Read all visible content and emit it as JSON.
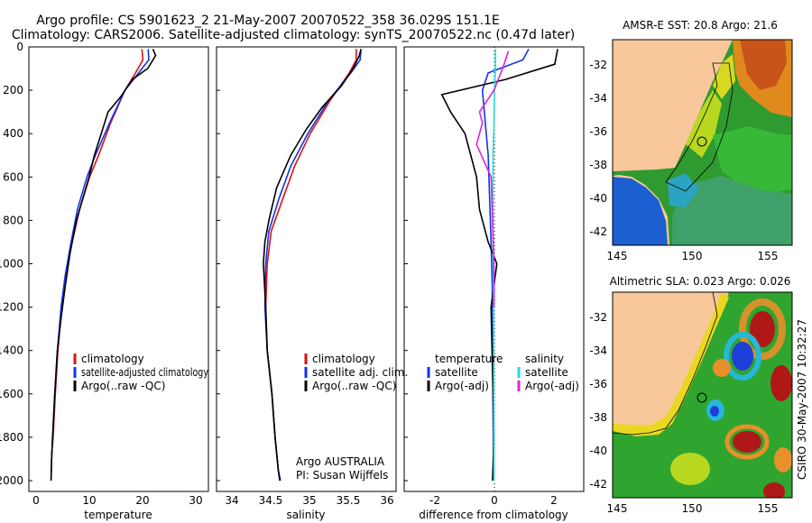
{
  "header": {
    "line1": "Argo profile: CS 5901623_2 21-May-2007 20070522_358 36.029S 151.1E",
    "line2": "Climatology: CARS2006. Satellite-adjusted climatology: synTS_20070522.nc (0.47d later)"
  },
  "side_label": "CSIRO 30-May-2007 10:32:27",
  "panels": {
    "temperature": {
      "xlabel": "temperature",
      "xticks": [
        "0",
        "10",
        "20",
        "30"
      ],
      "legend": [
        "climatology",
        "satellite-adjusted climatology",
        "Argo(..raw -QC)"
      ]
    },
    "salinity": {
      "xlabel": "salinity",
      "xticks": [
        "34",
        "34.5",
        "35",
        "35.5",
        "36"
      ],
      "legend": [
        "climatology",
        "satellite adj. clim.",
        "Argo(..raw -QC)"
      ],
      "note_line1": "Argo AUSTRALIA",
      "note_line2": "PI: Susan Wijffels"
    },
    "difference": {
      "xlabel": "difference from climatology",
      "xticks": [
        "-2",
        "0",
        "2"
      ],
      "legend_left": [
        "temperature",
        "satellite",
        "Argo(-adj)"
      ],
      "legend_right": [
        "salinity",
        "satellite",
        "Argo(-adj)"
      ]
    },
    "yticks": [
      "0",
      "200",
      "400",
      "600",
      "800",
      "1000",
      "1200",
      "1400",
      "1600",
      "1800",
      "2000"
    ]
  },
  "maps": {
    "sst_title": "AMSR-E SST: 20.8 Argo: 21.6",
    "sla_title": "Altimetric SLA: 0.023 Argo: 0.026",
    "lat_ticks": [
      "-32",
      "-34",
      "-36",
      "-38",
      "-40",
      "-42"
    ],
    "lon_ticks": [
      "145",
      "150",
      "155"
    ]
  },
  "colors": {
    "climatology": "#dd1111",
    "satellite": "#1133ee",
    "argo": "#000000",
    "salinity_satellite": "#22dddd",
    "salinity_argo": "#dd22dd",
    "land": "#f8c89a"
  },
  "chart_data": [
    {
      "type": "line",
      "title": "",
      "xlabel": "temperature",
      "ylabel": "",
      "xlim": [
        -2,
        32
      ],
      "ylim": [
        2050,
        0
      ],
      "series": [
        {
          "name": "climatology",
          "x": [
            19.4,
            19.6,
            18.2,
            16.2,
            13.5,
            11.2,
            9.5,
            7.6,
            6.2,
            5.0,
            4.2,
            3.5,
            3.0,
            2.6,
            2.3
          ],
          "y": [
            10,
            60,
            120,
            200,
            350,
            500,
            600,
            750,
            900,
            1050,
            1200,
            1400,
            1600,
            1800,
            1880
          ]
        },
        {
          "name": "satellite-adjusted climatology",
          "x": [
            20.6,
            20.7,
            18.8,
            16.2,
            13.3,
            10.6,
            9.0,
            7.2,
            6.0,
            4.9,
            4.1,
            3.4,
            2.9,
            2.5,
            2.3,
            2.2
          ],
          "y": [
            10,
            60,
            120,
            200,
            350,
            500,
            600,
            750,
            900,
            1050,
            1200,
            1400,
            1600,
            1800,
            1900,
            2000
          ]
        },
        {
          "name": "Argo(..raw -QC)",
          "x": [
            21.5,
            22.0,
            20.5,
            17.6,
            15.4,
            13.0,
            11.7,
            10.4,
            9.4,
            8.2,
            7.0,
            5.8,
            4.9,
            4.1,
            3.4,
            2.9,
            2.5,
            2.3,
            2.2
          ],
          "y": [
            10,
            40,
            100,
            150,
            230,
            300,
            400,
            500,
            600,
            700,
            800,
            950,
            1100,
            1250,
            1400,
            1600,
            1800,
            1900,
            2000
          ]
        }
      ]
    },
    {
      "type": "line",
      "title": "",
      "xlabel": "salinity",
      "ylabel": "",
      "xlim": [
        33.85,
        36.15
      ],
      "ylim": [
        2050,
        0
      ],
      "series": [
        {
          "name": "climatology",
          "x": [
            35.64,
            35.64,
            35.55,
            35.3,
            35.05,
            34.85,
            34.7,
            34.55,
            34.5,
            34.48,
            34.5,
            34.56,
            34.6,
            34.64,
            34.66
          ],
          "y": [
            10,
            60,
            120,
            250,
            400,
            550,
            700,
            850,
            1000,
            1200,
            1400,
            1600,
            1800,
            1950,
            2000
          ]
        },
        {
          "name": "satellite adj. clim.",
          "x": [
            35.7,
            35.69,
            35.57,
            35.28,
            35.02,
            34.8,
            34.65,
            34.52,
            34.48,
            34.47,
            34.5,
            34.56,
            34.6,
            34.64,
            34.67
          ],
          "y": [
            10,
            60,
            120,
            250,
            400,
            550,
            700,
            850,
            1000,
            1200,
            1400,
            1600,
            1800,
            1950,
            2000
          ]
        },
        {
          "name": "Argo(..raw -QC)",
          "x": [
            35.7,
            35.68,
            35.6,
            35.45,
            35.2,
            35.0,
            34.8,
            34.62,
            34.52,
            34.47,
            34.45,
            34.48,
            34.5,
            34.56,
            34.6,
            34.64,
            34.66
          ],
          "y": [
            10,
            40,
            100,
            180,
            280,
            380,
            500,
            650,
            800,
            900,
            1000,
            1200,
            1400,
            1600,
            1800,
            1950,
            2000
          ]
        }
      ]
    },
    {
      "type": "line",
      "title": "",
      "xlabel": "difference from climatology",
      "ylabel": "",
      "xlim": [
        -3.1,
        3.1
      ],
      "ylim": [
        2050,
        0
      ],
      "series": [
        {
          "name": "temperature satellite",
          "x": [
            1.2,
            1.0,
            -0.2,
            -0.4,
            -0.3,
            -0.2,
            -0.15,
            -0.1,
            -0.06,
            -0.05,
            -0.04,
            -0.03,
            -0.02,
            -0.01
          ],
          "y": [
            10,
            60,
            120,
            200,
            350,
            500,
            700,
            900,
            1100,
            1300,
            1500,
            1700,
            1900,
            2000
          ]
        },
        {
          "name": "temperature Argo(-adj)",
          "x": [
            2.2,
            2.1,
            0.4,
            -1.8,
            -1.5,
            -1.0,
            -0.6,
            -0.5,
            -0.4,
            -0.2,
            0.1,
            -0.1,
            -0.05,
            0.0,
            -0.05
          ],
          "y": [
            10,
            80,
            150,
            220,
            300,
            400,
            600,
            750,
            800,
            900,
            1000,
            1200,
            1500,
            1800,
            2000
          ]
        },
        {
          "name": "salinity satellite",
          "x": [
            0.05,
            0.05,
            0.02,
            0.0,
            -0.03,
            -0.04,
            -0.03,
            -0.02,
            -0.01,
            0.0,
            0.0
          ],
          "y": [
            10,
            100,
            200,
            350,
            500,
            700,
            900,
            1200,
            1500,
            1800,
            2000
          ]
        },
        {
          "name": "salinity Argo(-adj)",
          "x": [
            0.5,
            0.3,
            0.0,
            -0.5,
            -0.4,
            -0.6,
            -0.1,
            -0.05,
            0.0,
            0.0
          ],
          "y": [
            20,
            100,
            200,
            300,
            350,
            450,
            600,
            800,
            1000,
            1200
          ]
        }
      ]
    }
  ]
}
